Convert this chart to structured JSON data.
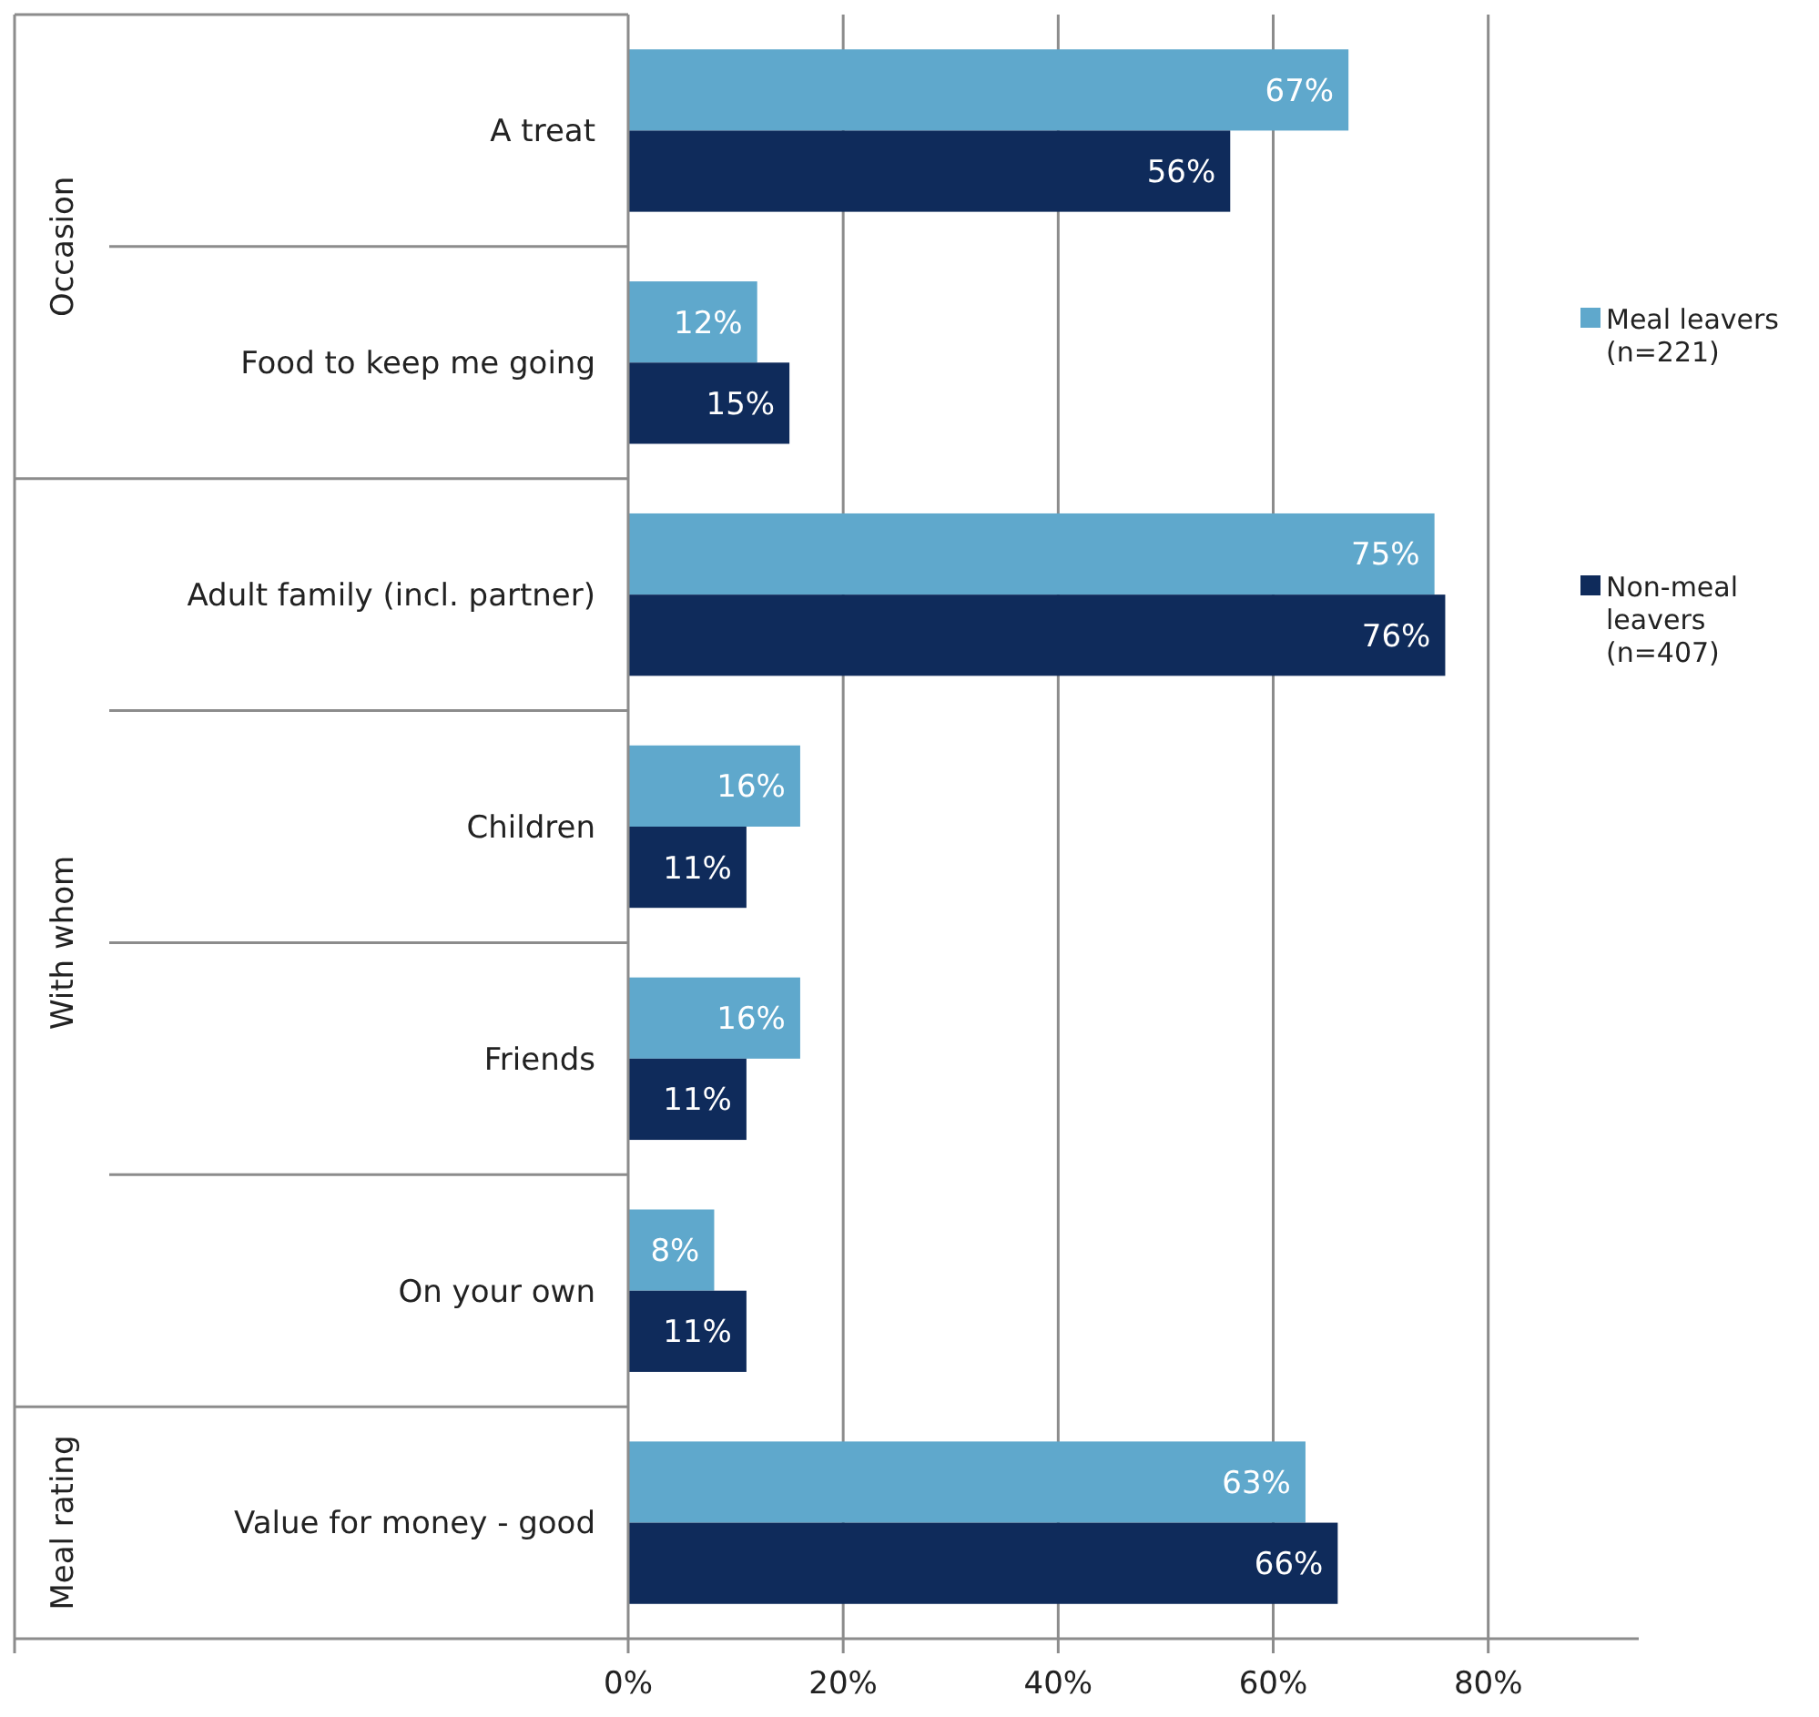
{
  "chart_data": {
    "type": "bar",
    "orientation": "horizontal",
    "categories": [
      "A treat",
      "Food to keep me going",
      "Adult family (incl. partner)",
      "Children",
      "Friends",
      "On your own",
      "Value for money - good"
    ],
    "series": [
      {
        "name": "Meal leavers (n=221)",
        "color": "#5fa8cc",
        "values": [
          67,
          12,
          75,
          16,
          16,
          8,
          63
        ],
        "value_labels": [
          "67%",
          "12%",
          "75%",
          "16%",
          "16%",
          "8%",
          "63%"
        ]
      },
      {
        "name": "Non-meal leavers (n=407)",
        "color": "#0f2b5b",
        "values": [
          56,
          15,
          76,
          11,
          11,
          11,
          66
        ],
        "value_labels": [
          "56%",
          "15%",
          "76%",
          "11%",
          "11%",
          "11%",
          "66%"
        ]
      }
    ],
    "xlim": [
      0,
      94
    ],
    "xticks": [
      {
        "value": 0,
        "label": "0%"
      },
      {
        "value": 20,
        "label": "20%"
      },
      {
        "value": 40,
        "label": "40%"
      },
      {
        "value": 60,
        "label": "60%"
      },
      {
        "value": 80,
        "label": "80%"
      }
    ],
    "grid": "x",
    "legend": "right",
    "annotations": [
      "Occasion",
      "With whom",
      "Meal rating"
    ]
  }
}
